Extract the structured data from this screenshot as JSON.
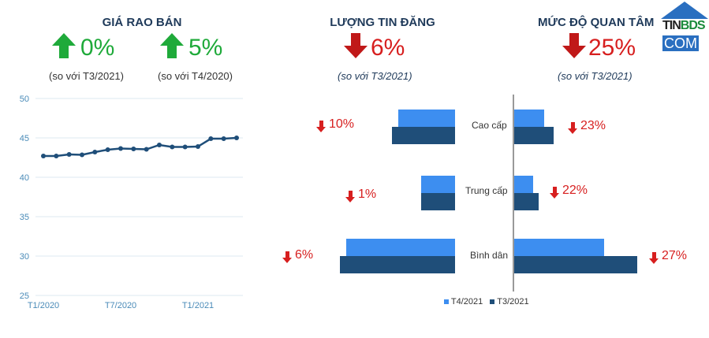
{
  "header": {
    "price": {
      "title": "GIÁ RAO BÁN",
      "items": [
        {
          "value": "0%",
          "direction": "up",
          "compare": "(so với T3/2021)"
        },
        {
          "value": "5%",
          "direction": "up",
          "compare": "(so với T4/2020)"
        }
      ]
    },
    "listings": {
      "title": "LƯỢNG TIN ĐĂNG",
      "value": "6%",
      "direction": "down",
      "compare": "(so với T3/2021)"
    },
    "interest": {
      "title": "MỨC ĐỘ QUAN TÂM",
      "value": "25%",
      "direction": "down",
      "compare": "(so với T3/2021)"
    }
  },
  "logo": {
    "text1": "TIN",
    "text2": "BDS",
    "text3": "COM"
  },
  "colors": {
    "up": "#1faa3a",
    "down": "#d71f1f",
    "line": "#1f4e79",
    "t4": "#3d8ef0",
    "t3": "#1f4e79"
  },
  "chart_data": [
    {
      "type": "line",
      "x": [
        "T1/2020",
        "T2/2020",
        "T3/2020",
        "T4/2020",
        "T5/2020",
        "T6/2020",
        "T7/2020",
        "T8/2020",
        "T9/2020",
        "T10/2020",
        "T11/2020",
        "T12/2020",
        "T1/2021",
        "T2/2021",
        "T3/2021",
        "T4/2021"
      ],
      "xticks": [
        "T1/2020",
        "T7/2020",
        "T1/2021"
      ],
      "values": [
        42.7,
        42.7,
        42.9,
        42.85,
        43.2,
        43.5,
        43.65,
        43.6,
        43.55,
        44.1,
        43.85,
        43.85,
        43.9,
        44.9,
        44.9,
        45.0
      ],
      "ylim": [
        25,
        50
      ],
      "yticks": [
        "25",
        "30",
        "35",
        "40",
        "45",
        "50"
      ],
      "grid": true
    },
    {
      "type": "bar",
      "orientation": "horizontal-mirrored",
      "categories": [
        "Cao cấp",
        "Trung cấp",
        "Bình dân"
      ],
      "legend": [
        "T4/2021",
        "T3/2021"
      ],
      "left": {
        "T4/2021": [
          72,
          43,
          138
        ],
        "T3/2021": [
          80,
          43,
          146
        ],
        "changes": [
          "10%",
          "1%",
          "6%"
        ]
      },
      "right": {
        "T4/2021": [
          38,
          24,
          114
        ],
        "T3/2021": [
          50,
          31,
          156
        ],
        "changes": [
          "23%",
          "22%",
          "27%"
        ]
      }
    }
  ]
}
